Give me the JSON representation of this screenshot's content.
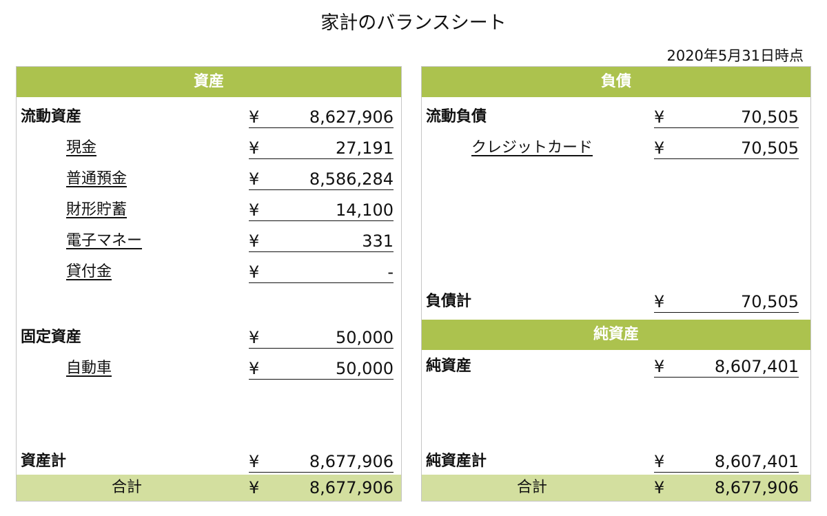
{
  "title": "家計のバランスシート",
  "date": "2020年5月31日時点",
  "currency": "¥",
  "assets": {
    "header": "資産",
    "current": {
      "label": "流動資産",
      "amount": "8,627,906"
    },
    "current_items": [
      {
        "label": "現金",
        "amount": "27,191"
      },
      {
        "label": "普通預金",
        "amount": "8,586,284"
      },
      {
        "label": "財形貯蓄",
        "amount": "14,100"
      },
      {
        "label": "電子マネー",
        "amount": "331"
      },
      {
        "label": "貸付金",
        "amount": "-"
      }
    ],
    "fixed": {
      "label": "固定資産",
      "amount": "50,000"
    },
    "fixed_items": [
      {
        "label": "自動車",
        "amount": "50,000"
      }
    ],
    "subtotal": {
      "label": "資産計",
      "amount": "8,677,906"
    },
    "total": {
      "label": "合計",
      "amount": "8,677,906"
    }
  },
  "liabilities": {
    "header": "負債",
    "current": {
      "label": "流動負債",
      "amount": "70,505"
    },
    "current_items": [
      {
        "label": "クレジットカード",
        "amount": "70,505"
      }
    ],
    "subtotal": {
      "label": "負債計",
      "amount": "70,505"
    }
  },
  "net_assets": {
    "header": "純資産",
    "item": {
      "label": "純資産",
      "amount": "8,607,401"
    },
    "subtotal": {
      "label": "純資産計",
      "amount": "8,607,401"
    },
    "total": {
      "label": "合計",
      "amount": "8,677,906"
    }
  },
  "colors": {
    "header_band": "#acc24e",
    "total_band": "#d3df9f"
  }
}
